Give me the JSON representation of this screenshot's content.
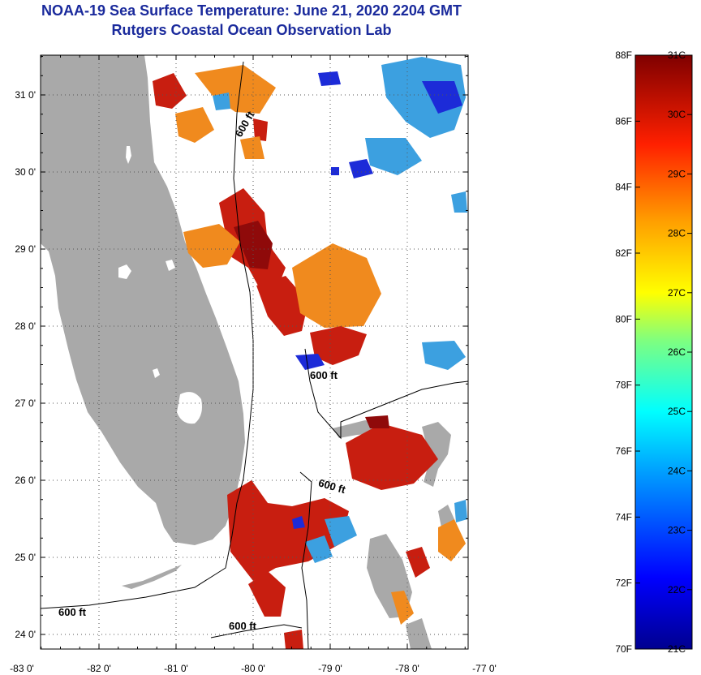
{
  "header": {
    "title_line1": "NOAA-19 Sea Surface Temperature:  June 21, 2020 2204 GMT",
    "title_line2": "Rutgers Coastal Ocean Observation Lab"
  },
  "map": {
    "lat_ticks": [
      "24 0'",
      "25 0'",
      "26 0'",
      "27 0'",
      "28 0'",
      "29 0'",
      "30 0'",
      "31 0'"
    ],
    "lon_ticks": [
      "-83 0'",
      "-82 0'",
      "-81 0'",
      "-80 0'",
      "-79 0'",
      "-78 0'",
      "-77 0'"
    ],
    "contour_label": "600 ft",
    "colors": {
      "land": "#a9a9a9",
      "warm": "#c81e10",
      "hot": "#8f0a0a",
      "orange": "#f08a1e",
      "cool": "#3ca0e0",
      "cold": "#1c2bd8"
    }
  },
  "colorbar": {
    "fahrenheit": [
      "88F",
      "86F",
      "84F",
      "82F",
      "80F",
      "78F",
      "76F",
      "74F",
      "72F",
      "70F"
    ],
    "celsius": [
      "31C",
      "30C",
      "29C",
      "28C",
      "27C",
      "26C",
      "25C",
      "24C",
      "23C",
      "22C",
      "21C"
    ]
  }
}
